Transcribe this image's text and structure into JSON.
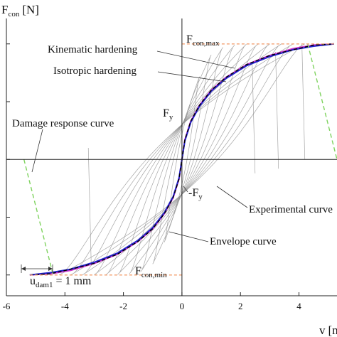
{
  "chart_data": {
    "type": "line",
    "ylabel_main": "F",
    "ylabel_sub": "con",
    "ylabel_unit": "[N]",
    "xlabel_main": "v",
    "xlabel_unit": "[m",
    "xlim": [
      -6,
      5.3
    ],
    "ylim": [
      -1.18,
      1.22
    ],
    "x_ticks": [
      "-6",
      "-4",
      "-2",
      "0",
      "2",
      "4"
    ],
    "x_tick_values": [
      -6,
      -4,
      -2,
      0,
      2,
      4
    ],
    "y_grid_values": [
      -1,
      -0.5,
      0,
      0.5,
      1
    ],
    "grid": false,
    "annotations": {
      "kinematic": "Kinematic hardening",
      "isotropic": "Isotropic hardening",
      "damage": "Damage response curve",
      "fy_main": "F",
      "fy_sub": "y",
      "neg_fy_main": "-F",
      "neg_fy_sub": "y",
      "experimental": "Experimental curve",
      "envelope": "Envelope curve",
      "fconmax_main": "F",
      "fconmax_sub": "con,max",
      "fconmin_main": "F",
      "fconmin_sub": "con,min",
      "udam_main": "u",
      "udam_sub": "dam1",
      "udam_value": "= 1 mm"
    },
    "series": [
      {
        "name": "Kinematic hardening",
        "color": "#cc33cc",
        "x": [
          -5.2,
          -4.5,
          -3.8,
          -3.0,
          -2.2,
          -1.5,
          -1.0,
          -0.6,
          -0.3,
          -0.1,
          0.0,
          0.1,
          0.3,
          0.6,
          1.0,
          1.5,
          2.2,
          3.0,
          3.8,
          4.5,
          5.2
        ],
        "y": [
          -1.0,
          -0.99,
          -0.96,
          -0.9,
          -0.82,
          -0.71,
          -0.6,
          -0.47,
          -0.33,
          -0.17,
          0.0,
          0.17,
          0.33,
          0.47,
          0.6,
          0.71,
          0.82,
          0.9,
          0.96,
          0.99,
          1.0
        ]
      },
      {
        "name": "Isotropic hardening",
        "color": "#2222cc",
        "x": [
          -5.2,
          -4.5,
          -3.8,
          -3.0,
          -2.2,
          -1.5,
          -1.0,
          -0.6,
          -0.3,
          -0.1,
          0.0,
          0.1,
          0.3,
          0.6,
          1.0,
          1.5,
          2.2,
          3.0,
          3.8,
          4.5,
          5.2
        ],
        "y": [
          -1.0,
          -0.98,
          -0.95,
          -0.89,
          -0.81,
          -0.7,
          -0.59,
          -0.46,
          -0.32,
          -0.16,
          0.0,
          0.16,
          0.32,
          0.46,
          0.59,
          0.7,
          0.81,
          0.89,
          0.95,
          0.98,
          1.0
        ]
      },
      {
        "name": "Envelope curve",
        "color": "#000000",
        "dash": "5,3",
        "x": [
          -5.2,
          -4.5,
          -3.8,
          -3.0,
          -2.2,
          -1.5,
          -1.0,
          -0.6,
          -0.3,
          -0.1,
          0.0,
          0.1,
          0.3,
          0.6,
          1.0,
          1.5,
          2.2,
          3.0,
          3.8,
          4.5,
          5.2
        ],
        "y": [
          -1.0,
          -0.99,
          -0.95,
          -0.9,
          -0.82,
          -0.71,
          -0.6,
          -0.47,
          -0.33,
          -0.17,
          0.0,
          0.17,
          0.33,
          0.47,
          0.6,
          0.71,
          0.82,
          0.9,
          0.95,
          0.99,
          1.0
        ]
      },
      {
        "name": "Damage response curve",
        "color": "#7fd35f",
        "dash": "6,4",
        "x": [
          -5.4,
          -4.4
        ],
        "y": [
          0.0,
          -1.0
        ]
      },
      {
        "name": "Damage response curve (right)",
        "color": "#7fd35f",
        "dash": "6,4",
        "x": [
          4.3,
          5.3
        ],
        "y": [
          1.0,
          0.0
        ]
      },
      {
        "name": "F_con,max",
        "color": "#f4a070",
        "dash": "4,3",
        "x": [
          0.0,
          5.2
        ],
        "y": [
          1.0,
          1.0
        ]
      },
      {
        "name": "F_con,min",
        "color": "#f4a070",
        "dash": "4,3",
        "x": [
          -5.2,
          0.0
        ],
        "y": [
          -1.0,
          -1.0
        ]
      }
    ],
    "hysteresis_loops": {
      "color": "#888888",
      "amplitudes": [
        0.6,
        1.0,
        1.4,
        1.8,
        2.2,
        2.6,
        3.0,
        3.4,
        3.8,
        4.2
      ]
    },
    "cycle_hooks": [
      [
        4.1,
        1.0,
        4.2,
        0.0
      ],
      [
        3.2,
        0.93,
        3.3,
        -0.08
      ],
      [
        2.4,
        0.84,
        2.5,
        -0.12
      ],
      [
        -3.1,
        -0.92,
        -3.2,
        0.1
      ]
    ]
  }
}
